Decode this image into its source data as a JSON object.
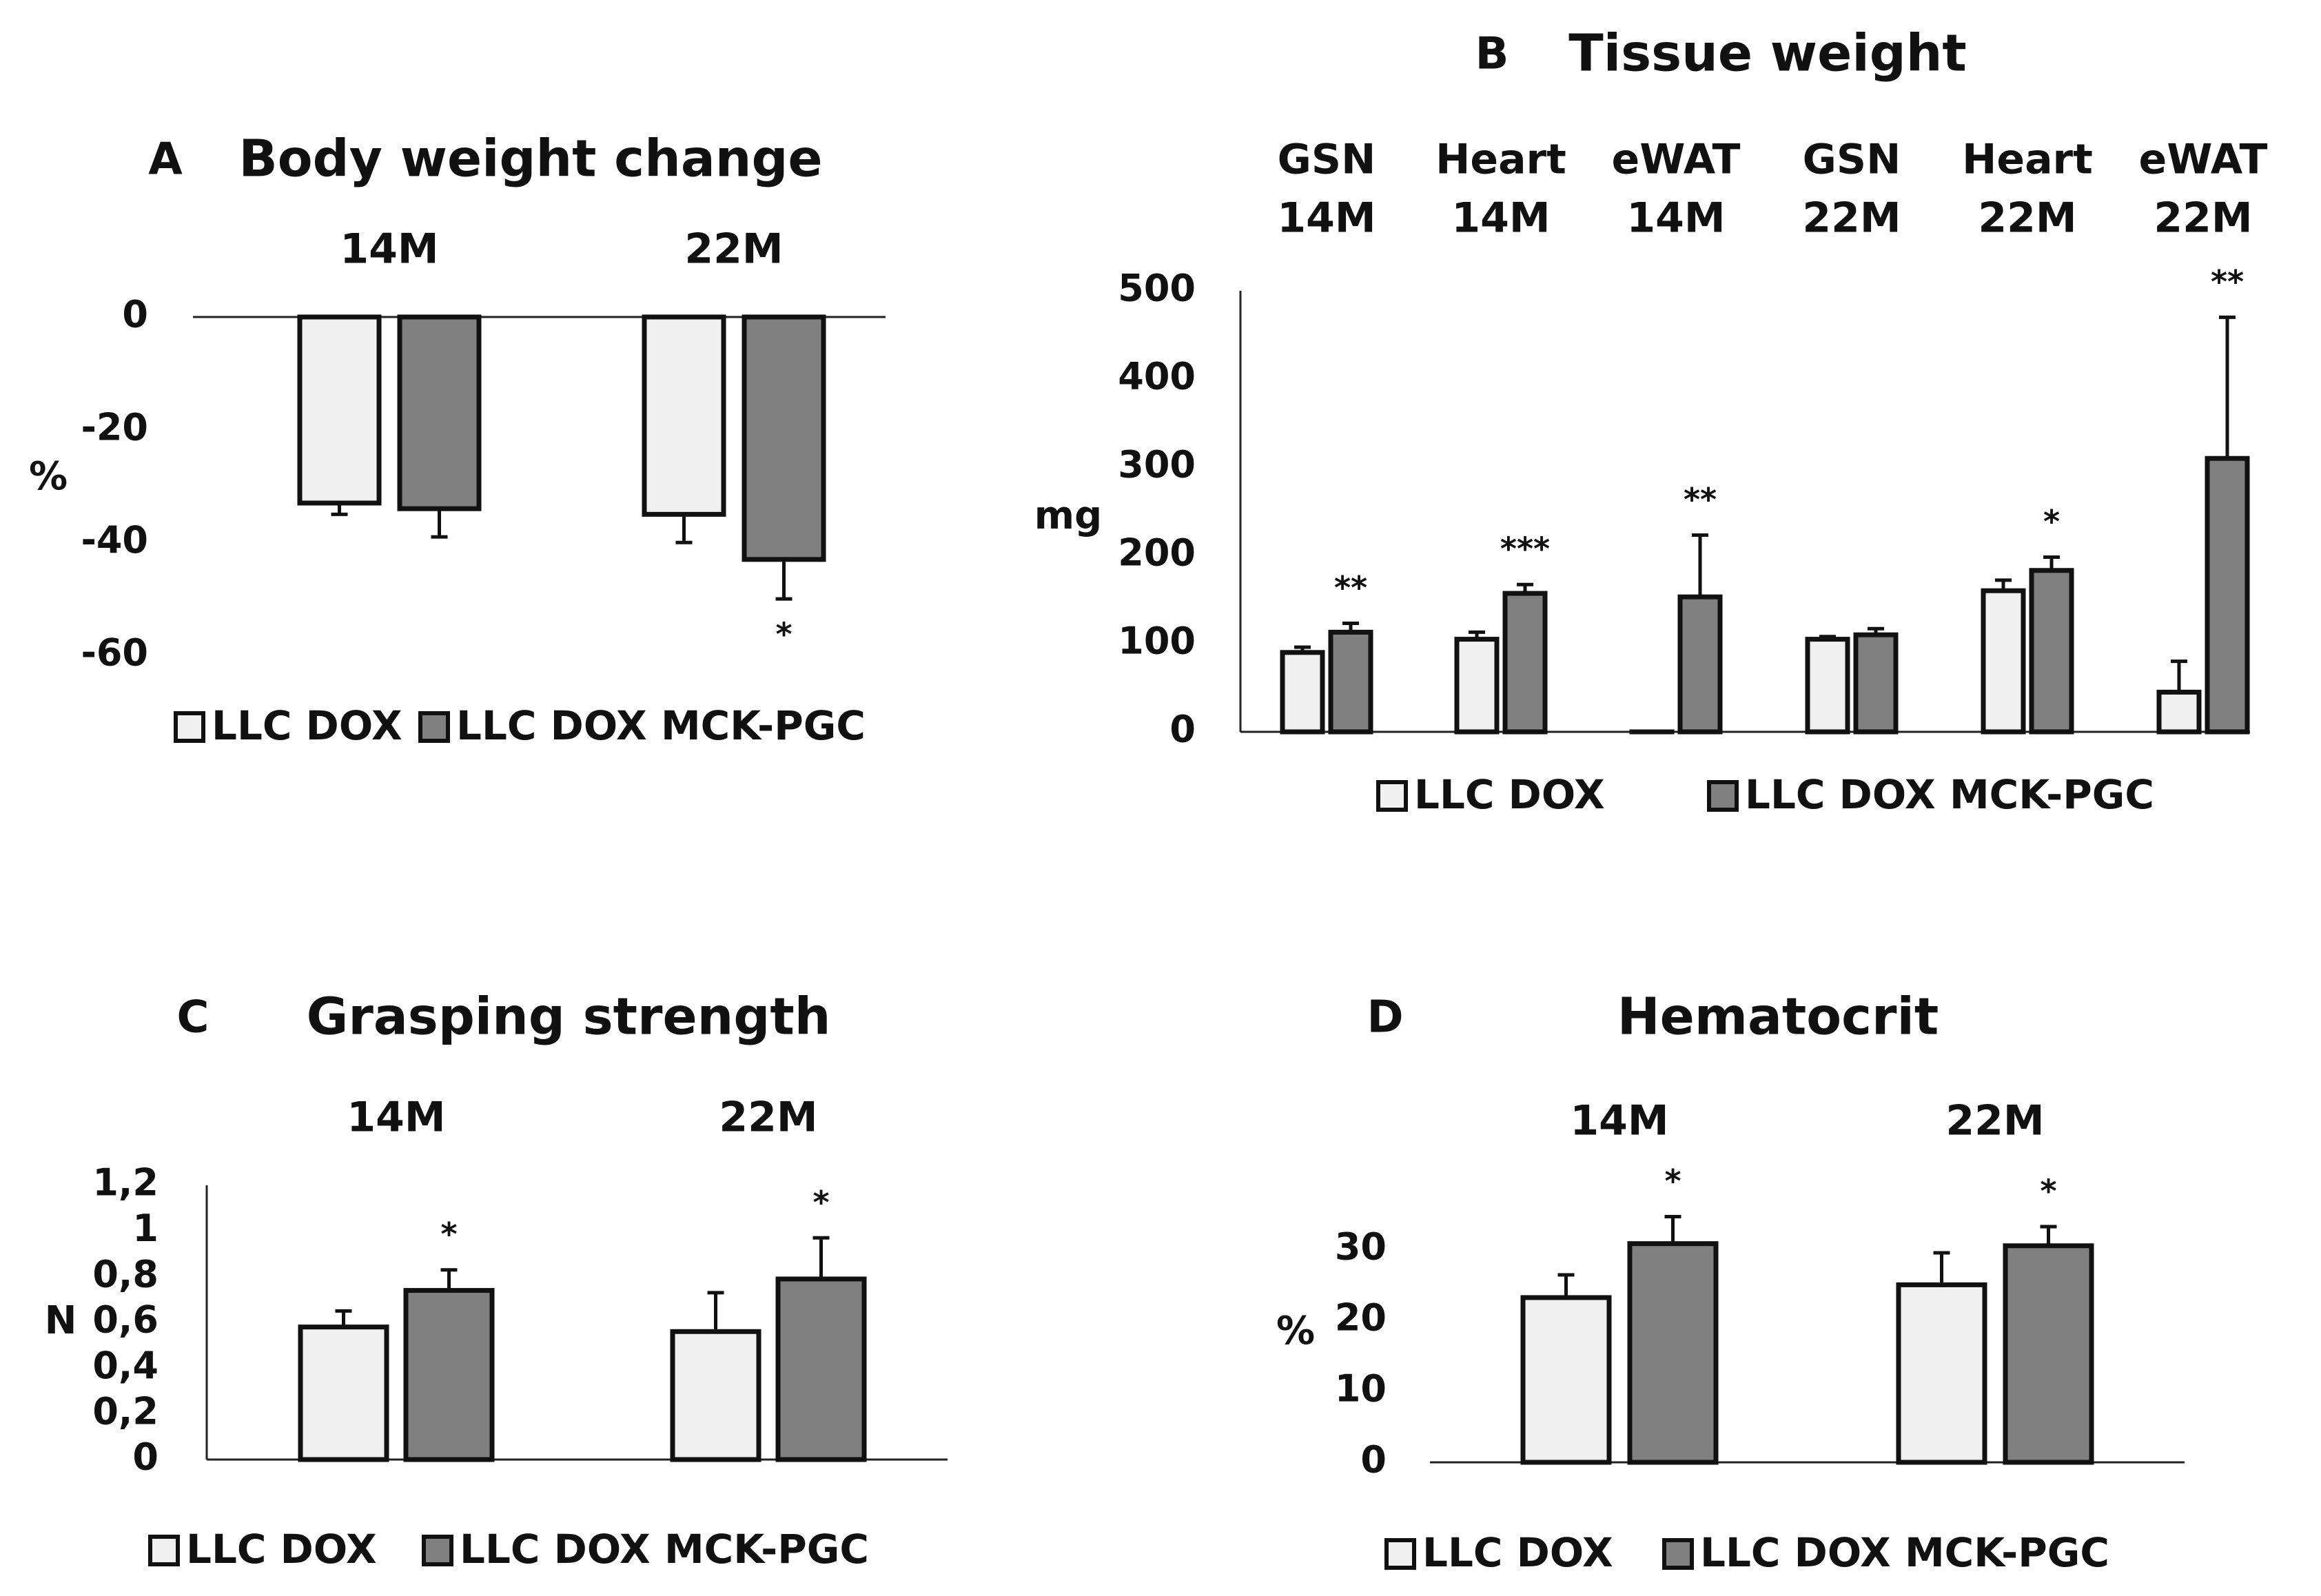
{
  "chart_data": [
    {
      "panel": "A",
      "type": "bar",
      "title": "Body weight change",
      "categories": [
        "14M",
        "22M"
      ],
      "series": [
        {
          "name": "LLC DOX",
          "color": "#f0f0f0",
          "values": [
            -33,
            -35
          ],
          "errors": [
            2,
            5
          ]
        },
        {
          "name": "LLC DOX MCK-PGC",
          "color": "#808080",
          "values": [
            -34,
            -43
          ],
          "errors": [
            5,
            7
          ]
        }
      ],
      "significance": [
        {
          "series": 1,
          "category": 1,
          "text": "*",
          "position": "below"
        }
      ],
      "ylabel": "%",
      "yticks": [
        0,
        -20,
        -40,
        -60
      ],
      "ytick_labels": [
        "0",
        "-20",
        "-40",
        "-60"
      ],
      "ylim": [
        -66,
        0
      ],
      "legend": [
        "LLC DOX",
        "LLC DOX MCK-PGC"
      ]
    },
    {
      "panel": "B",
      "type": "bar",
      "title": "Tissue weight",
      "categories": [
        [
          "GSN",
          "14M"
        ],
        [
          "Heart",
          "14M"
        ],
        [
          "eWAT",
          "14M"
        ],
        [
          "GSN",
          "22M"
        ],
        [
          "Heart",
          "22M"
        ],
        [
          "eWAT",
          "22M"
        ]
      ],
      "series": [
        {
          "name": "LLC DOX",
          "color": "#f0f0f0",
          "values": [
            90,
            105,
            0,
            105,
            160,
            45
          ],
          "errors": [
            6,
            8,
            0,
            3,
            12,
            35
          ]
        },
        {
          "name": "LLC DOX MCK-PGC",
          "color": "#808080",
          "values": [
            113,
            157,
            153,
            110,
            183,
            310
          ],
          "errors": [
            10,
            10,
            70,
            7,
            15,
            160
          ]
        }
      ],
      "significance": [
        {
          "series": 1,
          "category": 0,
          "text": "**"
        },
        {
          "series": 1,
          "category": 1,
          "text": "***"
        },
        {
          "series": 1,
          "category": 2,
          "text": "**"
        },
        {
          "series": 1,
          "category": 4,
          "text": "*"
        },
        {
          "series": 1,
          "category": 5,
          "text": "**"
        }
      ],
      "ylabel": "mg",
      "yticks": [
        0,
        100,
        200,
        300,
        400,
        500
      ],
      "ytick_labels": [
        "0",
        "100",
        "200",
        "300",
        "400",
        "500"
      ],
      "ylim": [
        0,
        500
      ],
      "legend": [
        "LLC DOX",
        "LLC DOX MCK-PGC"
      ]
    },
    {
      "panel": "C",
      "type": "bar",
      "title": "Grasping strength",
      "categories": [
        "14M",
        "22M"
      ],
      "series": [
        {
          "name": "LLC DOX",
          "color": "#f0f0f0",
          "values": [
            0.58,
            0.56
          ],
          "errors": [
            0.07,
            0.17
          ]
        },
        {
          "name": "LLC DOX MCK-PGC",
          "color": "#808080",
          "values": [
            0.74,
            0.79
          ],
          "errors": [
            0.09,
            0.18
          ]
        }
      ],
      "significance": [
        {
          "series": 1,
          "category": 0,
          "text": "*"
        },
        {
          "series": 1,
          "category": 1,
          "text": "*"
        }
      ],
      "ylabel": "N",
      "yticks": [
        0,
        0.2,
        0.4,
        0.6,
        0.8,
        1,
        1.2
      ],
      "ytick_labels": [
        "0",
        "0,2",
        "0,4",
        "0,6",
        "0,8",
        "1",
        "1,2"
      ],
      "ylim": [
        0,
        1.2
      ],
      "legend": [
        "LLC DOX",
        "LLC DOX MCK-PGC"
      ]
    },
    {
      "panel": "D",
      "type": "bar",
      "title": "Hematocrit",
      "categories": [
        "14M",
        "22M"
      ],
      "series": [
        {
          "name": "LLC DOX",
          "color": "#f0f0f0",
          "values": [
            23.2,
            25.0
          ],
          "errors": [
            3.2,
            4.5
          ]
        },
        {
          "name": "LLC DOX MCK-PGC",
          "color": "#808080",
          "values": [
            30.8,
            30.5
          ],
          "errors": [
            3.8,
            2.7
          ]
        }
      ],
      "significance": [
        {
          "series": 1,
          "category": 0,
          "text": "*"
        },
        {
          "series": 1,
          "category": 1,
          "text": "*"
        }
      ],
      "ylabel": "%",
      "yticks": [
        0,
        10,
        20,
        30
      ],
      "ytick_labels": [
        "0",
        "10",
        "20",
        "30"
      ],
      "ylim": [
        0,
        33
      ],
      "legend": [
        "LLC DOX",
        "LLC DOX MCK-PGC"
      ]
    }
  ]
}
